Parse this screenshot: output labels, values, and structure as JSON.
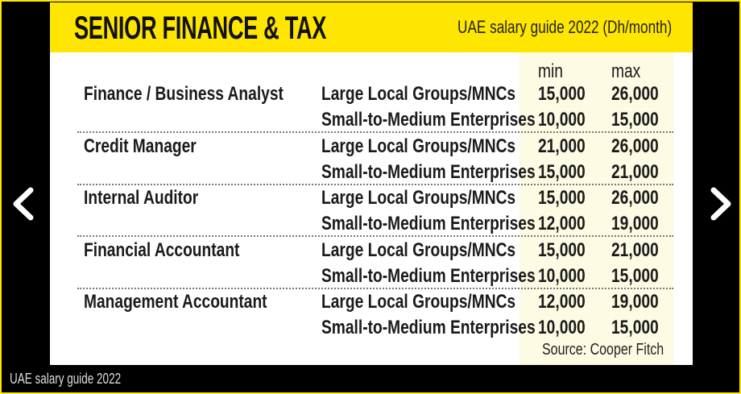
{
  "header": {
    "title": "SENIOR FINANCE & TAX",
    "subtitle": "UAE salary guide 2022 (Dh/month)"
  },
  "columns": {
    "min": "min",
    "max": "max"
  },
  "rows": [
    {
      "role": "Finance / Business Analyst",
      "entries": [
        {
          "segment": "Large Local Groups/MNCs",
          "min": "15,000",
          "max": "26,000"
        },
        {
          "segment": "Small-to-Medium Enterprises",
          "min": "10,000",
          "max": "15,000"
        }
      ]
    },
    {
      "role": "Credit Manager",
      "entries": [
        {
          "segment": "Large Local Groups/MNCs",
          "min": "21,000",
          "max": "26,000"
        },
        {
          "segment": "Small-to-Medium Enterprises",
          "min": "15,000",
          "max": "21,000"
        }
      ]
    },
    {
      "role": "Internal Auditor",
      "entries": [
        {
          "segment": "Large Local Groups/MNCs",
          "min": "15,000",
          "max": "26,000"
        },
        {
          "segment": "Small-to-Medium Enterprises",
          "min": "12,000",
          "max": "19,000"
        }
      ]
    },
    {
      "role": "Financial Accountant",
      "entries": [
        {
          "segment": "Large Local Groups/MNCs",
          "min": "15,000",
          "max": "21,000"
        },
        {
          "segment": "Small-to-Medium Enterprises",
          "min": "10,000",
          "max": "15,000"
        }
      ]
    },
    {
      "role": "Management Accountant",
      "entries": [
        {
          "segment": "Large Local Groups/MNCs",
          "min": "12,000",
          "max": "19,000"
        },
        {
          "segment": "Small-to-Medium Enterprises",
          "min": "10,000",
          "max": "15,000"
        }
      ]
    }
  ],
  "source": "Source: Cooper Fitch",
  "caption": "UAE salary guide 2022",
  "colors": {
    "accent": "#ffe600",
    "background": "#000000",
    "shade": "#fdfbe3"
  }
}
